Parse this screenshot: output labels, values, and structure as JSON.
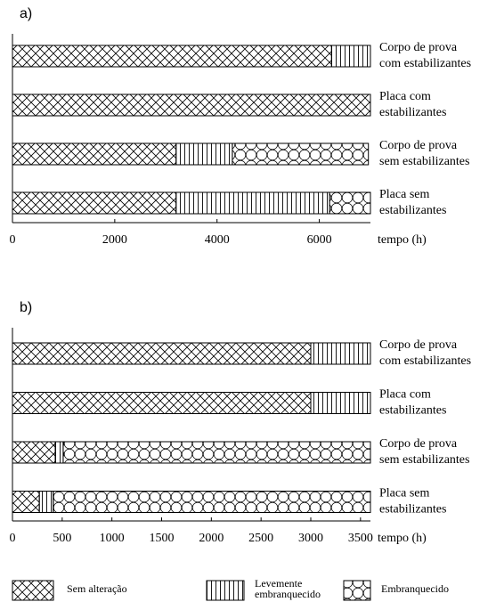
{
  "chart_data": [
    {
      "type": "bar",
      "orientation": "horizontal",
      "title": "a)",
      "xlabel": "tempo (h)",
      "categories": [
        [
          "Corpo de prova",
          "com estabilizantes"
        ],
        [
          "Placa com",
          "estabilizantes"
        ],
        [
          "Corpo de prova",
          "sem estabilizantes"
        ],
        [
          "Placa sem",
          "estabilizantes"
        ]
      ],
      "series": [
        {
          "values": [
            6240,
            7000,
            3200,
            3200
          ]
        },
        {
          "values": [
            760,
            0,
            1100,
            3000
          ]
        },
        {
          "values": [
            0,
            0,
            2660,
            800
          ]
        }
      ],
      "xlim": [
        0,
        7000
      ],
      "xticks": [
        0,
        2000,
        4000,
        6000
      ]
    },
    {
      "type": "bar",
      "orientation": "horizontal",
      "title": "b)",
      "xlabel": "tempo (h)",
      "categories": [
        [
          "Corpo de prova",
          "com estabilizantes"
        ],
        [
          "Placa com",
          "estabilizantes"
        ],
        [
          "Corpo de prova",
          "sem estabilizantes"
        ],
        [
          "Placa sem",
          "estabilizantes"
        ]
      ],
      "series": [
        {
          "values": [
            3000,
            3000,
            430,
            270
          ]
        },
        {
          "values": [
            600,
            600,
            80,
            140
          ]
        },
        {
          "values": [
            0,
            0,
            3090,
            3190
          ]
        }
      ],
      "xlim": [
        0,
        3600
      ],
      "xticks": [
        0,
        500,
        1000,
        1500,
        2000,
        2500,
        3000,
        3500
      ]
    }
  ],
  "legend": [
    [
      "Sem alteração"
    ],
    [
      "Levemente",
      "embranquecido"
    ],
    [
      "Embranquecido"
    ]
  ],
  "patterns": [
    "crosshatch",
    "vertical",
    "circles"
  ]
}
